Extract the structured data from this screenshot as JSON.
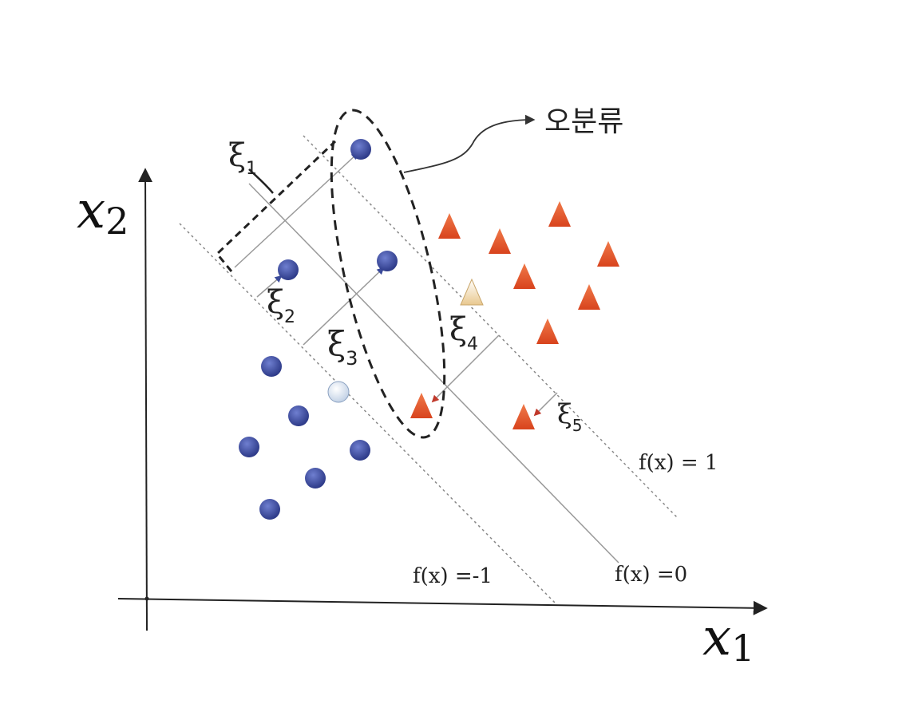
{
  "axes": {
    "x_label": "x",
    "x_label_sub": "1",
    "y_label": "x",
    "y_label_sub": "2"
  },
  "lines": {
    "upper_margin_label": "f(x) = 1",
    "decision_boundary_label": "f(x) =0",
    "lower_margin_label": "f(x) =-1"
  },
  "slack": [
    {
      "symbol": "ξ",
      "sub": "1"
    },
    {
      "symbol": "ξ",
      "sub": "2"
    },
    {
      "symbol": "ξ",
      "sub": "3"
    },
    {
      "symbol": "ξ",
      "sub": "4"
    },
    {
      "symbol": "ξ",
      "sub": "5"
    }
  ],
  "annotation": {
    "misclassification_label": "오분류"
  },
  "colors": {
    "circle_class": "#3a4a9a",
    "triangle_class": "#e0502a",
    "support_circle": "#dde6f2",
    "support_triangle": "#f3e6c8",
    "axis": "#222222"
  }
}
